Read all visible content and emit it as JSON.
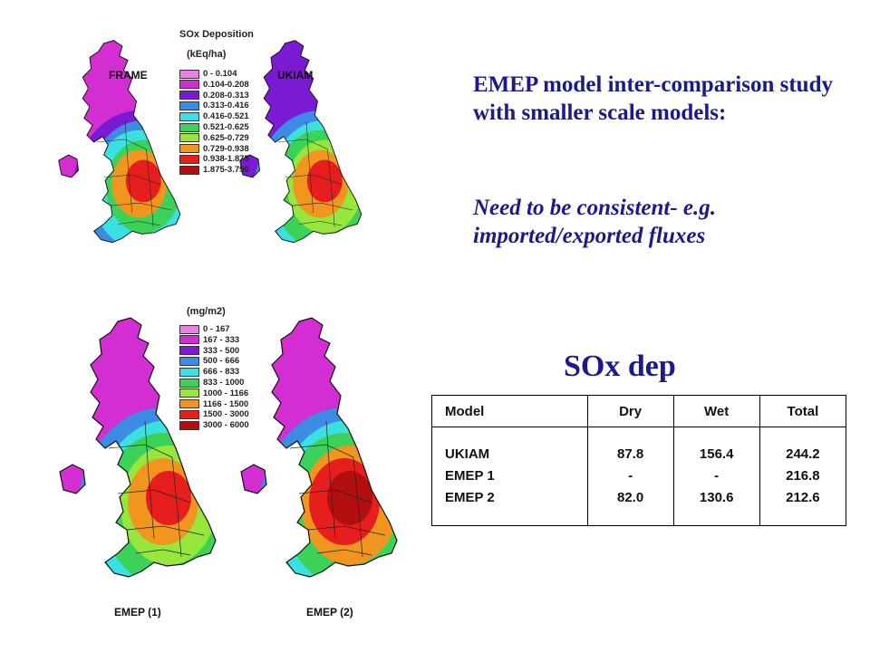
{
  "maps": {
    "top_left_label": "FRAME",
    "top_right_label": "UKIAM",
    "bottom_left_label": "EMEP (1)",
    "bottom_right_label": "EMEP (2)",
    "legend_top": {
      "title": "SOx Deposition",
      "units": "(kEq/ha)",
      "entries": [
        {
          "range": "0 - 0.104",
          "color": "#e880e8"
        },
        {
          "range": "0.104-0.208",
          "color": "#d22ed2"
        },
        {
          "range": "0.208-0.313",
          "color": "#7a1ad2"
        },
        {
          "range": "0.313-0.416",
          "color": "#3c8ce6"
        },
        {
          "range": "0.416-0.521",
          "color": "#3ce0e0"
        },
        {
          "range": "0.521-0.625",
          "color": "#3cd25a"
        },
        {
          "range": "0.625-0.729",
          "color": "#96e63c"
        },
        {
          "range": "0.729-0.938",
          "color": "#f0961e"
        },
        {
          "range": "0.938-1.875",
          "color": "#e61e1e"
        },
        {
          "range": "1.875-3.750",
          "color": "#b40f0f"
        }
      ]
    },
    "legend_bottom": {
      "units": "(mg/m2)",
      "entries": [
        {
          "range": "0 - 167",
          "color": "#e880e8"
        },
        {
          "range": "167 - 333",
          "color": "#d22ed2"
        },
        {
          "range": "333 - 500",
          "color": "#7a1ad2"
        },
        {
          "range": "500 - 666",
          "color": "#3c8ce6"
        },
        {
          "range": "666 - 833",
          "color": "#3ce0e0"
        },
        {
          "range": "833 - 1000",
          "color": "#3cd25a"
        },
        {
          "range": "1000 - 1166",
          "color": "#96e63c"
        },
        {
          "range": "1166 - 1500",
          "color": "#f0961e"
        },
        {
          "range": "1500 - 3000",
          "color": "#e61e1e"
        },
        {
          "range": "3000 - 6000",
          "color": "#b40f0f"
        }
      ]
    }
  },
  "text": {
    "heading": "EMEP model inter-comparison study with smaller scale models:",
    "subheading": "Need to be consistent- e.g. imported/exported fluxes",
    "sox_title": "SOx dep"
  },
  "table": {
    "headers": {
      "model": "Model",
      "dry": "Dry",
      "wet": "Wet",
      "total": "Total"
    },
    "rows": [
      {
        "model": "UKIAM",
        "dry": "87.8",
        "wet": "156.4",
        "total": "244.2"
      },
      {
        "model": "EMEP 1",
        "dry": "-",
        "wet": "-",
        "total": "216.8"
      },
      {
        "model": "EMEP 2",
        "dry": "82.0",
        "wet": "130.6",
        "total": "212.6"
      }
    ]
  }
}
